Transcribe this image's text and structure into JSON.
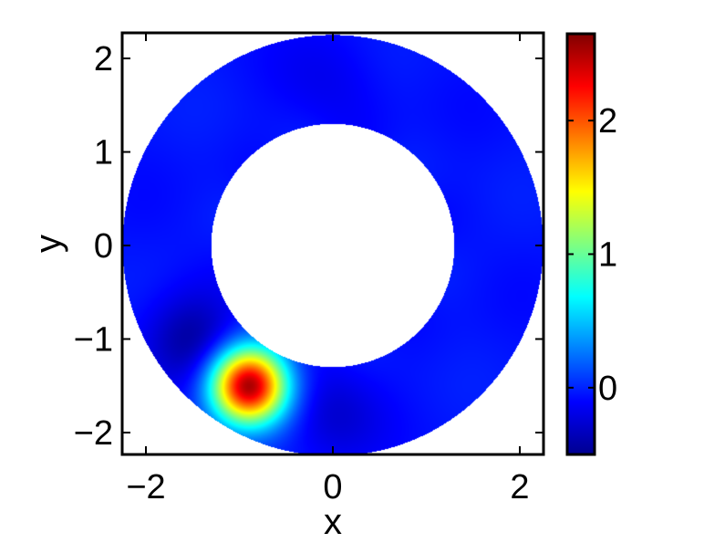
{
  "chart_data": {
    "type": "heatmap",
    "title": "",
    "xlabel": "x",
    "ylabel": "y",
    "xlim": [
      -2.25,
      2.3
    ],
    "ylim": [
      -2.25,
      2.25
    ],
    "xticks": [
      -2,
      0,
      2
    ],
    "yticks": [
      -2,
      -1,
      0,
      1,
      2
    ],
    "xtick_labels": [
      "−2",
      "0",
      "2"
    ],
    "ytick_labels": [
      "−2",
      "−1",
      "0",
      "1",
      "2"
    ],
    "domain": {
      "shape": "annulus",
      "inner_radius": 1.3,
      "outer_radius": 2.25
    },
    "background_value": -0.05,
    "features": [
      {
        "kind": "peak",
        "x": -0.9,
        "y": -1.5,
        "value": 2.6,
        "width": 0.28
      },
      {
        "kind": "dip",
        "x": -1.5,
        "y": -1.0,
        "value": -0.35,
        "width": 0.35
      },
      {
        "kind": "dip",
        "x": 0.0,
        "y": -1.8,
        "value": -0.2,
        "width": 0.35
      },
      {
        "kind": "dip",
        "x": 0.0,
        "y": 1.75,
        "value": -0.1,
        "width": 0.4
      }
    ],
    "colorbar": {
      "colormap": "jet",
      "range": [
        -0.5,
        2.65
      ],
      "ticks": [
        0,
        1,
        2
      ],
      "tick_labels": [
        "0",
        "1",
        "2"
      ]
    },
    "grid": false,
    "legend": "none"
  }
}
